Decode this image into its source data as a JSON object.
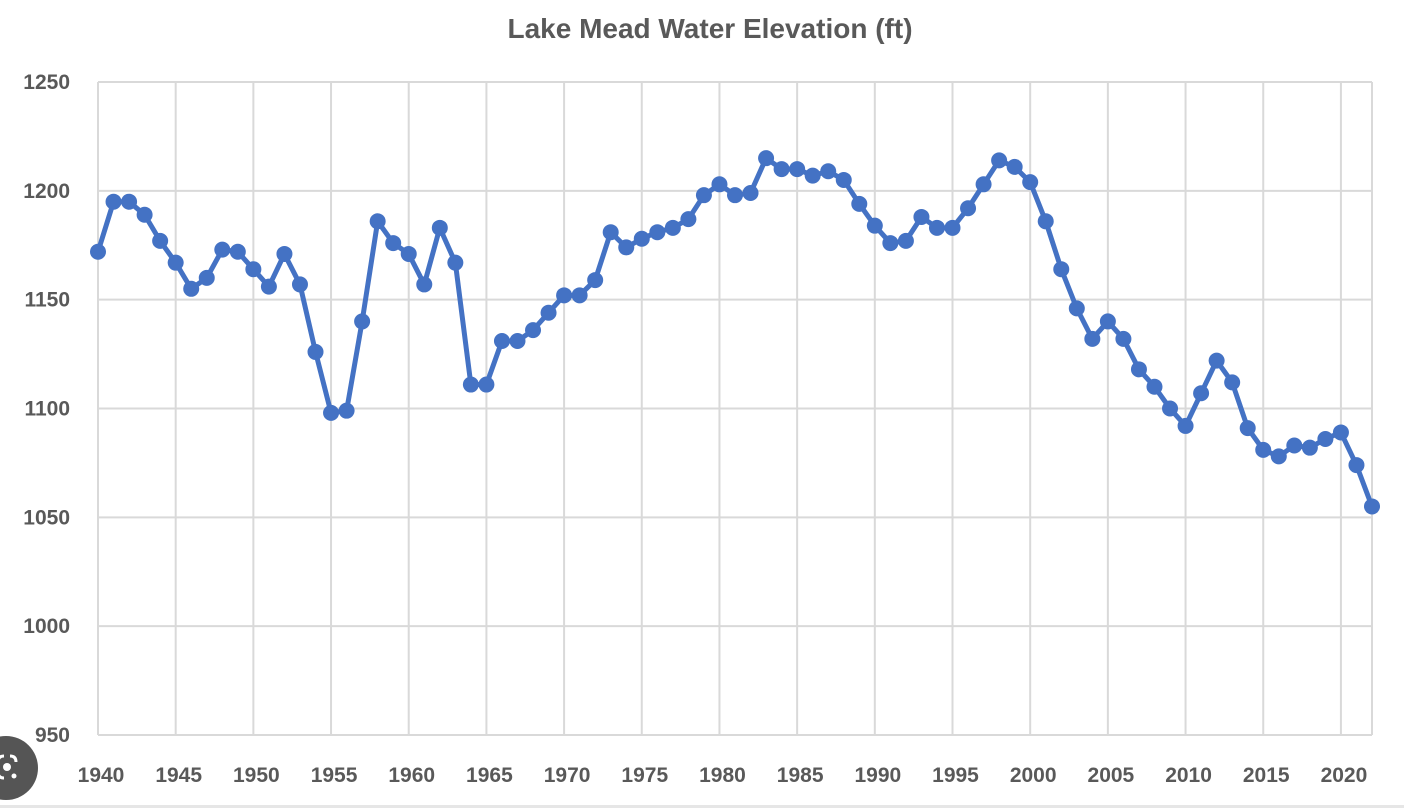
{
  "chart_data": {
    "type": "line",
    "title": "Lake Mead Water Elevation (ft)",
    "xlabel": "",
    "ylabel": "",
    "xlim": [
      1940,
      2022
    ],
    "ylim": [
      950,
      1250
    ],
    "grid": true,
    "legend": "none",
    "x_ticks": [
      "1940",
      "1945",
      "1950",
      "1955",
      "1960",
      "1965",
      "1970",
      "1975",
      "1980",
      "1985",
      "1990",
      "1995",
      "2000",
      "2005",
      "2010",
      "2015",
      "2020"
    ],
    "y_ticks": [
      "950",
      "1000",
      "1050",
      "1100",
      "1150",
      "1200",
      "1250"
    ],
    "series": [
      {
        "name": "Lake Mead Water Elevation",
        "color": "#4472c4",
        "x": [
          1940,
          1941,
          1942,
          1943,
          1944,
          1945,
          1946,
          1947,
          1948,
          1949,
          1950,
          1951,
          1952,
          1953,
          1954,
          1955,
          1956,
          1957,
          1958,
          1959,
          1960,
          1961,
          1962,
          1963,
          1964,
          1965,
          1966,
          1967,
          1968,
          1969,
          1970,
          1971,
          1972,
          1973,
          1974,
          1975,
          1976,
          1977,
          1978,
          1979,
          1980,
          1981,
          1982,
          1983,
          1984,
          1985,
          1986,
          1987,
          1988,
          1989,
          1990,
          1991,
          1992,
          1993,
          1994,
          1995,
          1996,
          1997,
          1998,
          1999,
          2000,
          2001,
          2002,
          2003,
          2004,
          2005,
          2006,
          2007,
          2008,
          2009,
          2010,
          2011,
          2012,
          2013,
          2014,
          2015,
          2016,
          2017,
          2018,
          2019,
          2020,
          2021,
          2022
        ],
        "values": [
          1172,
          1195,
          1195,
          1189,
          1177,
          1167,
          1155,
          1160,
          1173,
          1172,
          1164,
          1156,
          1171,
          1157,
          1126,
          1098,
          1099,
          1140,
          1186,
          1176,
          1171,
          1157,
          1183,
          1167,
          1111,
          1111,
          1131,
          1131,
          1136,
          1144,
          1152,
          1152,
          1159,
          1181,
          1174,
          1178,
          1181,
          1183,
          1187,
          1198,
          1203,
          1198,
          1199,
          1215,
          1210,
          1210,
          1207,
          1209,
          1205,
          1194,
          1184,
          1176,
          1177,
          1188,
          1183,
          1183,
          1192,
          1203,
          1214,
          1211,
          1204,
          1186,
          1164,
          1146,
          1132,
          1140,
          1132,
          1118,
          1110,
          1100,
          1092,
          1107,
          1122,
          1112,
          1091,
          1081,
          1078,
          1083,
          1082,
          1086,
          1089,
          1074,
          1055
        ]
      }
    ]
  },
  "overlay": {
    "lens_button": "visual-search"
  }
}
